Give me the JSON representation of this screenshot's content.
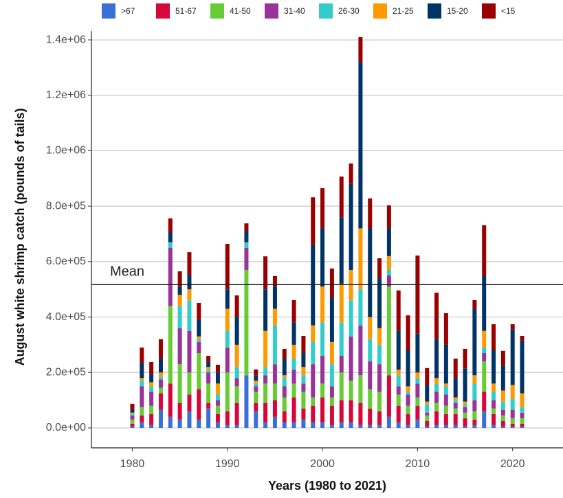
{
  "chart_data": {
    "type": "bar",
    "stacked": true,
    "x_label": "Years (1980 to 2021)",
    "y_label": "August white shrimp catch (pounds of tails)",
    "x": [
      1980,
      1981,
      1982,
      1983,
      1984,
      1985,
      1986,
      1987,
      1988,
      1989,
      1990,
      1991,
      1992,
      1993,
      1994,
      1995,
      1996,
      1997,
      1998,
      1999,
      2000,
      2001,
      2002,
      2003,
      2004,
      2005,
      2006,
      2007,
      2008,
      2009,
      2010,
      2011,
      2012,
      2013,
      2014,
      2015,
      2016,
      2017,
      2018,
      2019,
      2020,
      2021
    ],
    "xlim": [
      1975.7,
      2025.3
    ],
    "xticks": [
      1980,
      1990,
      2000,
      2010,
      2020
    ],
    "ylim": [
      -72000,
      1420000
    ],
    "yticks": [
      {
        "value": 0,
        "label": "0.0e+00"
      },
      {
        "value": 200000,
        "label": "2.0e+05"
      },
      {
        "value": 400000,
        "label": "4.0e+05"
      },
      {
        "value": 600000,
        "label": "6.0e+05"
      },
      {
        "value": 800000,
        "label": "8.0e+05"
      },
      {
        "value": 1000000,
        "label": "1.0e+06"
      },
      {
        "value": 1200000,
        "label": "1.2e+06"
      },
      {
        "value": 1400000,
        "label": "1.4e+06"
      }
    ],
    "grid": true,
    "legend_position": "top",
    "mean": {
      "label": "Mean",
      "value": 517000
    },
    "series": [
      {
        "name": ">67",
        "color": "#3a6fd8",
        "values": [
          5000,
          20000,
          10000,
          65000,
          40000,
          30000,
          60000,
          30000,
          70000,
          20000,
          10000,
          10000,
          190000,
          60000,
          20000,
          40000,
          20000,
          20000,
          30000,
          20000,
          20000,
          10000,
          20000,
          20000,
          10000,
          10000,
          10000,
          40000,
          20000,
          10000,
          30000,
          5000,
          10000,
          10000,
          10000,
          5000,
          10000,
          60000,
          10000,
          5000,
          5000,
          5000
        ]
      },
      {
        "name": "51-67",
        "color": "#d7063b",
        "values": [
          10000,
          25000,
          40000,
          60000,
          120000,
          60000,
          60000,
          110000,
          20000,
          30000,
          50000,
          80000,
          0,
          30000,
          70000,
          60000,
          40000,
          90000,
          40000,
          60000,
          90000,
          70000,
          80000,
          80000,
          80000,
          60000,
          50000,
          150000,
          60000,
          40000,
          50000,
          20000,
          50000,
          40000,
          40000,
          30000,
          20000,
          70000,
          40000,
          20000,
          10000,
          10000
        ]
      },
      {
        "name": "41-50",
        "color": "#66cc33",
        "values": [
          15000,
          30000,
          30000,
          20000,
          280000,
          140000,
          80000,
          130000,
          70000,
          30000,
          140000,
          60000,
          380000,
          40000,
          70000,
          60000,
          50000,
          50000,
          60000,
          30000,
          50000,
          30000,
          100000,
          70000,
          100000,
          70000,
          70000,
          320000,
          40000,
          30000,
          30000,
          20000,
          30000,
          30000,
          20000,
          20000,
          30000,
          110000,
          20000,
          20000,
          20000,
          20000
        ]
      },
      {
        "name": "31-40",
        "color": "#993399",
        "values": [
          15000,
          75000,
          50000,
          30000,
          210000,
          130000,
          150000,
          40000,
          40000,
          20000,
          90000,
          30000,
          80000,
          20000,
          30000,
          70000,
          40000,
          50000,
          30000,
          120000,
          100000,
          40000,
          60000,
          160000,
          180000,
          100000,
          100000,
          40000,
          30000,
          40000,
          50000,
          10000,
          40000,
          40000,
          20000,
          20000,
          40000,
          30000,
          30000,
          20000,
          30000,
          20000
        ]
      },
      {
        "name": "26-30",
        "color": "#33cccc",
        "values": [
          5000,
          20000,
          20000,
          10000,
          20000,
          80000,
          110000,
          10000,
          10000,
          20000,
          60000,
          40000,
          20000,
          10000,
          30000,
          140000,
          30000,
          40000,
          30000,
          80000,
          120000,
          80000,
          120000,
          130000,
          130000,
          80000,
          70000,
          20000,
          40000,
          10000,
          20000,
          30000,
          30000,
          30000,
          10000,
          10000,
          60000,
          20000,
          30000,
          30000,
          40000,
          20000
        ]
      },
      {
        "name": "21-25",
        "color": "#ff9900",
        "values": [
          5000,
          10000,
          15000,
          15000,
          0,
          40000,
          40000,
          10000,
          10000,
          40000,
          80000,
          80000,
          0,
          10000,
          130000,
          60000,
          10000,
          50000,
          30000,
          60000,
          130000,
          80000,
          140000,
          110000,
          220000,
          80000,
          60000,
          50000,
          20000,
          20000,
          20000,
          10000,
          20000,
          10000,
          10000,
          10000,
          30000,
          60000,
          30000,
          40000,
          50000,
          50000
        ]
      },
      {
        "name": "15-20",
        "color": "#003366",
        "values": [
          12000,
          55000,
          30000,
          50000,
          35000,
          30000,
          50000,
          60000,
          20000,
          40000,
          70000,
          100000,
          40000,
          20000,
          150000,
          80000,
          60000,
          80000,
          50000,
          290000,
          210000,
          160000,
          240000,
          310000,
          600000,
          320000,
          180000,
          100000,
          140000,
          130000,
          140000,
          60000,
          140000,
          140000,
          70000,
          120000,
          240000,
          200000,
          120000,
          90000,
          200000,
          190000
        ]
      },
      {
        "name": "<15",
        "color": "#990000",
        "values": [
          20000,
          55000,
          43000,
          70000,
          51000,
          55000,
          84000,
          61000,
          20000,
          28000,
          164000,
          78000,
          28000,
          21000,
          119000,
          38000,
          35000,
          81000,
          62000,
          172000,
          145000,
          105000,
          147000,
          74000,
          90000,
          108000,
          72000,
          83000,
          146000,
          126000,
          282000,
          61000,
          168000,
          114000,
          70000,
          70000,
          31000,
          181000,
          94000,
          53000,
          19000,
          17000
        ]
      }
    ]
  }
}
